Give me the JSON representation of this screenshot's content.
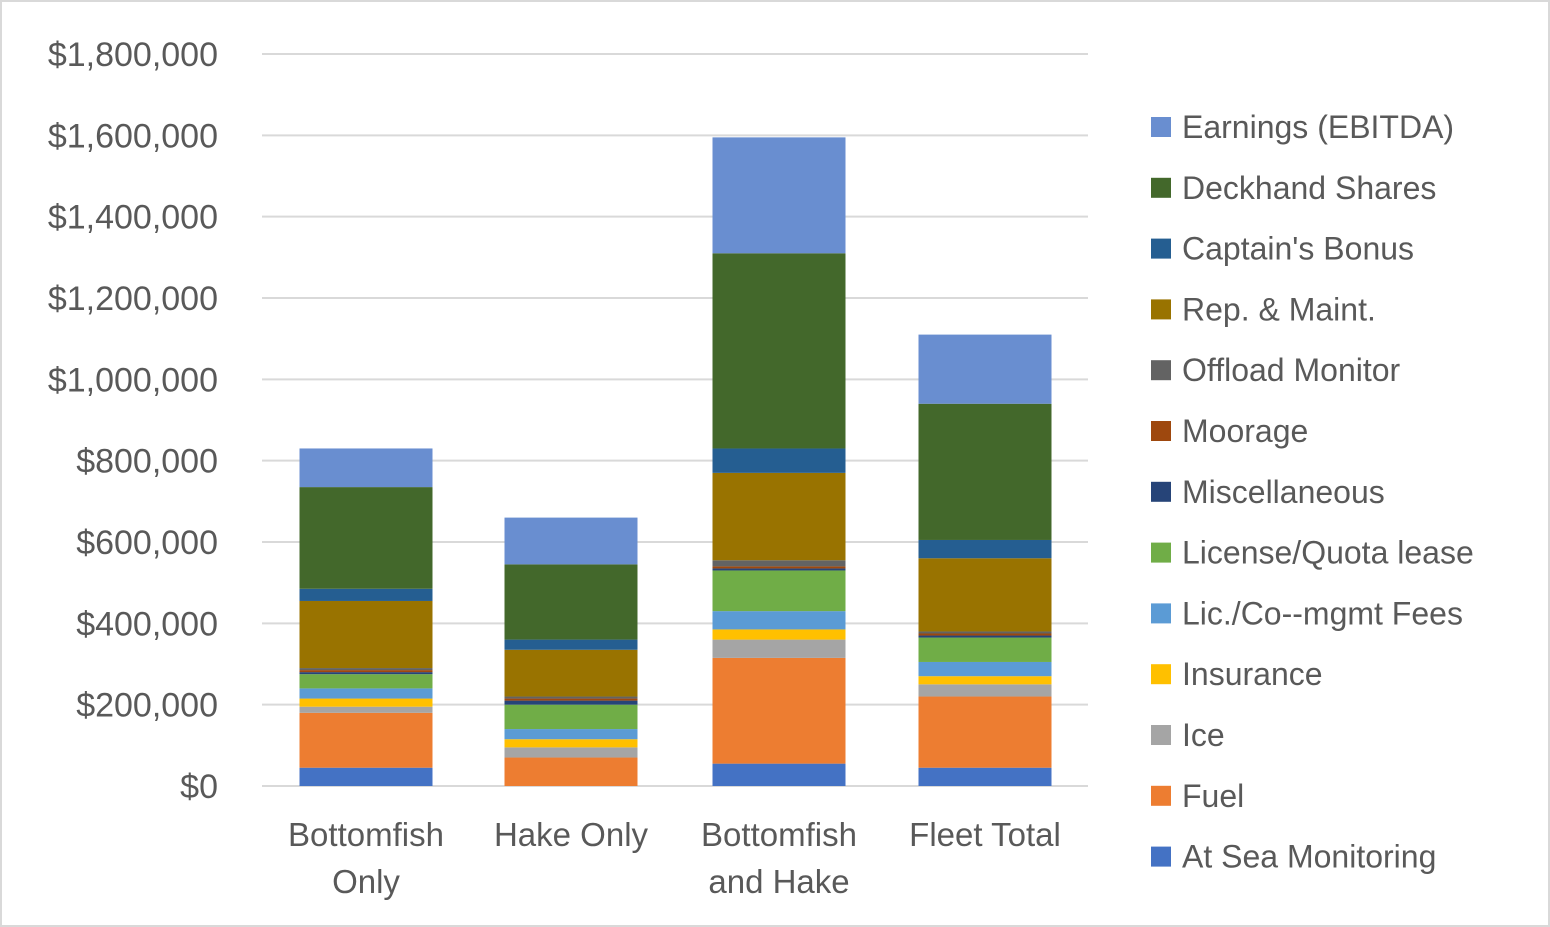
{
  "chart_data": {
    "type": "bar",
    "stacked": true,
    "title": "",
    "xlabel": "",
    "ylabel": "",
    "ylim": [
      0,
      1800000
    ],
    "yticks": [
      0,
      200000,
      400000,
      600000,
      800000,
      1000000,
      1200000,
      1400000,
      1600000,
      1800000
    ],
    "ytick_labels": [
      "$0",
      "$200,000",
      "$400,000",
      "$600,000",
      "$800,000",
      "$1,000,000",
      "$1,200,000",
      "$1,400,000",
      "$1,600,000",
      "$1,800,000"
    ],
    "grid": true,
    "legend_position": "right",
    "categories": [
      [
        "Bottomfish",
        "Only"
      ],
      [
        "Hake Only"
      ],
      [
        "Bottomfish",
        "and Hake"
      ],
      [
        "Fleet Total"
      ]
    ],
    "series": [
      {
        "name": "At Sea Monitoring",
        "color": "#4472C4",
        "values": [
          45000,
          0,
          55000,
          45000
        ]
      },
      {
        "name": "Fuel",
        "color": "#ED7D31",
        "values": [
          135000,
          70000,
          260000,
          175000
        ]
      },
      {
        "name": "Ice",
        "color": "#A5A5A5",
        "values": [
          15000,
          25000,
          45000,
          30000
        ]
      },
      {
        "name": "Insurance",
        "color": "#FFC000",
        "values": [
          20000,
          20000,
          25000,
          20000
        ]
      },
      {
        "name": "Lic./Co--mgmt Fees",
        "color": "#5B9BD5",
        "values": [
          25000,
          25000,
          45000,
          35000
        ]
      },
      {
        "name": "License/Quota lease",
        "color": "#70AD47",
        "values": [
          35000,
          60000,
          100000,
          60000
        ]
      },
      {
        "name": "Miscellaneous",
        "color": "#264478",
        "values": [
          5000,
          10000,
          5000,
          5000
        ]
      },
      {
        "name": "Moorage",
        "color": "#9E480E",
        "values": [
          5000,
          5000,
          5000,
          5000
        ]
      },
      {
        "name": "Offload Monitor",
        "color": "#636363",
        "values": [
          5000,
          5000,
          15000,
          5000
        ]
      },
      {
        "name": "Rep. & Maint.",
        "color": "#997300",
        "values": [
          165000,
          115000,
          215000,
          180000
        ]
      },
      {
        "name": "Captain's Bonus",
        "color": "#255E91",
        "values": [
          30000,
          25000,
          60000,
          45000
        ]
      },
      {
        "name": "Deckhand Shares",
        "color": "#43682B",
        "values": [
          250000,
          185000,
          480000,
          335000
        ]
      },
      {
        "name": "Earnings (EBITDA)",
        "color": "#698ED0",
        "values": [
          95000,
          115000,
          285000,
          170000
        ]
      }
    ]
  }
}
